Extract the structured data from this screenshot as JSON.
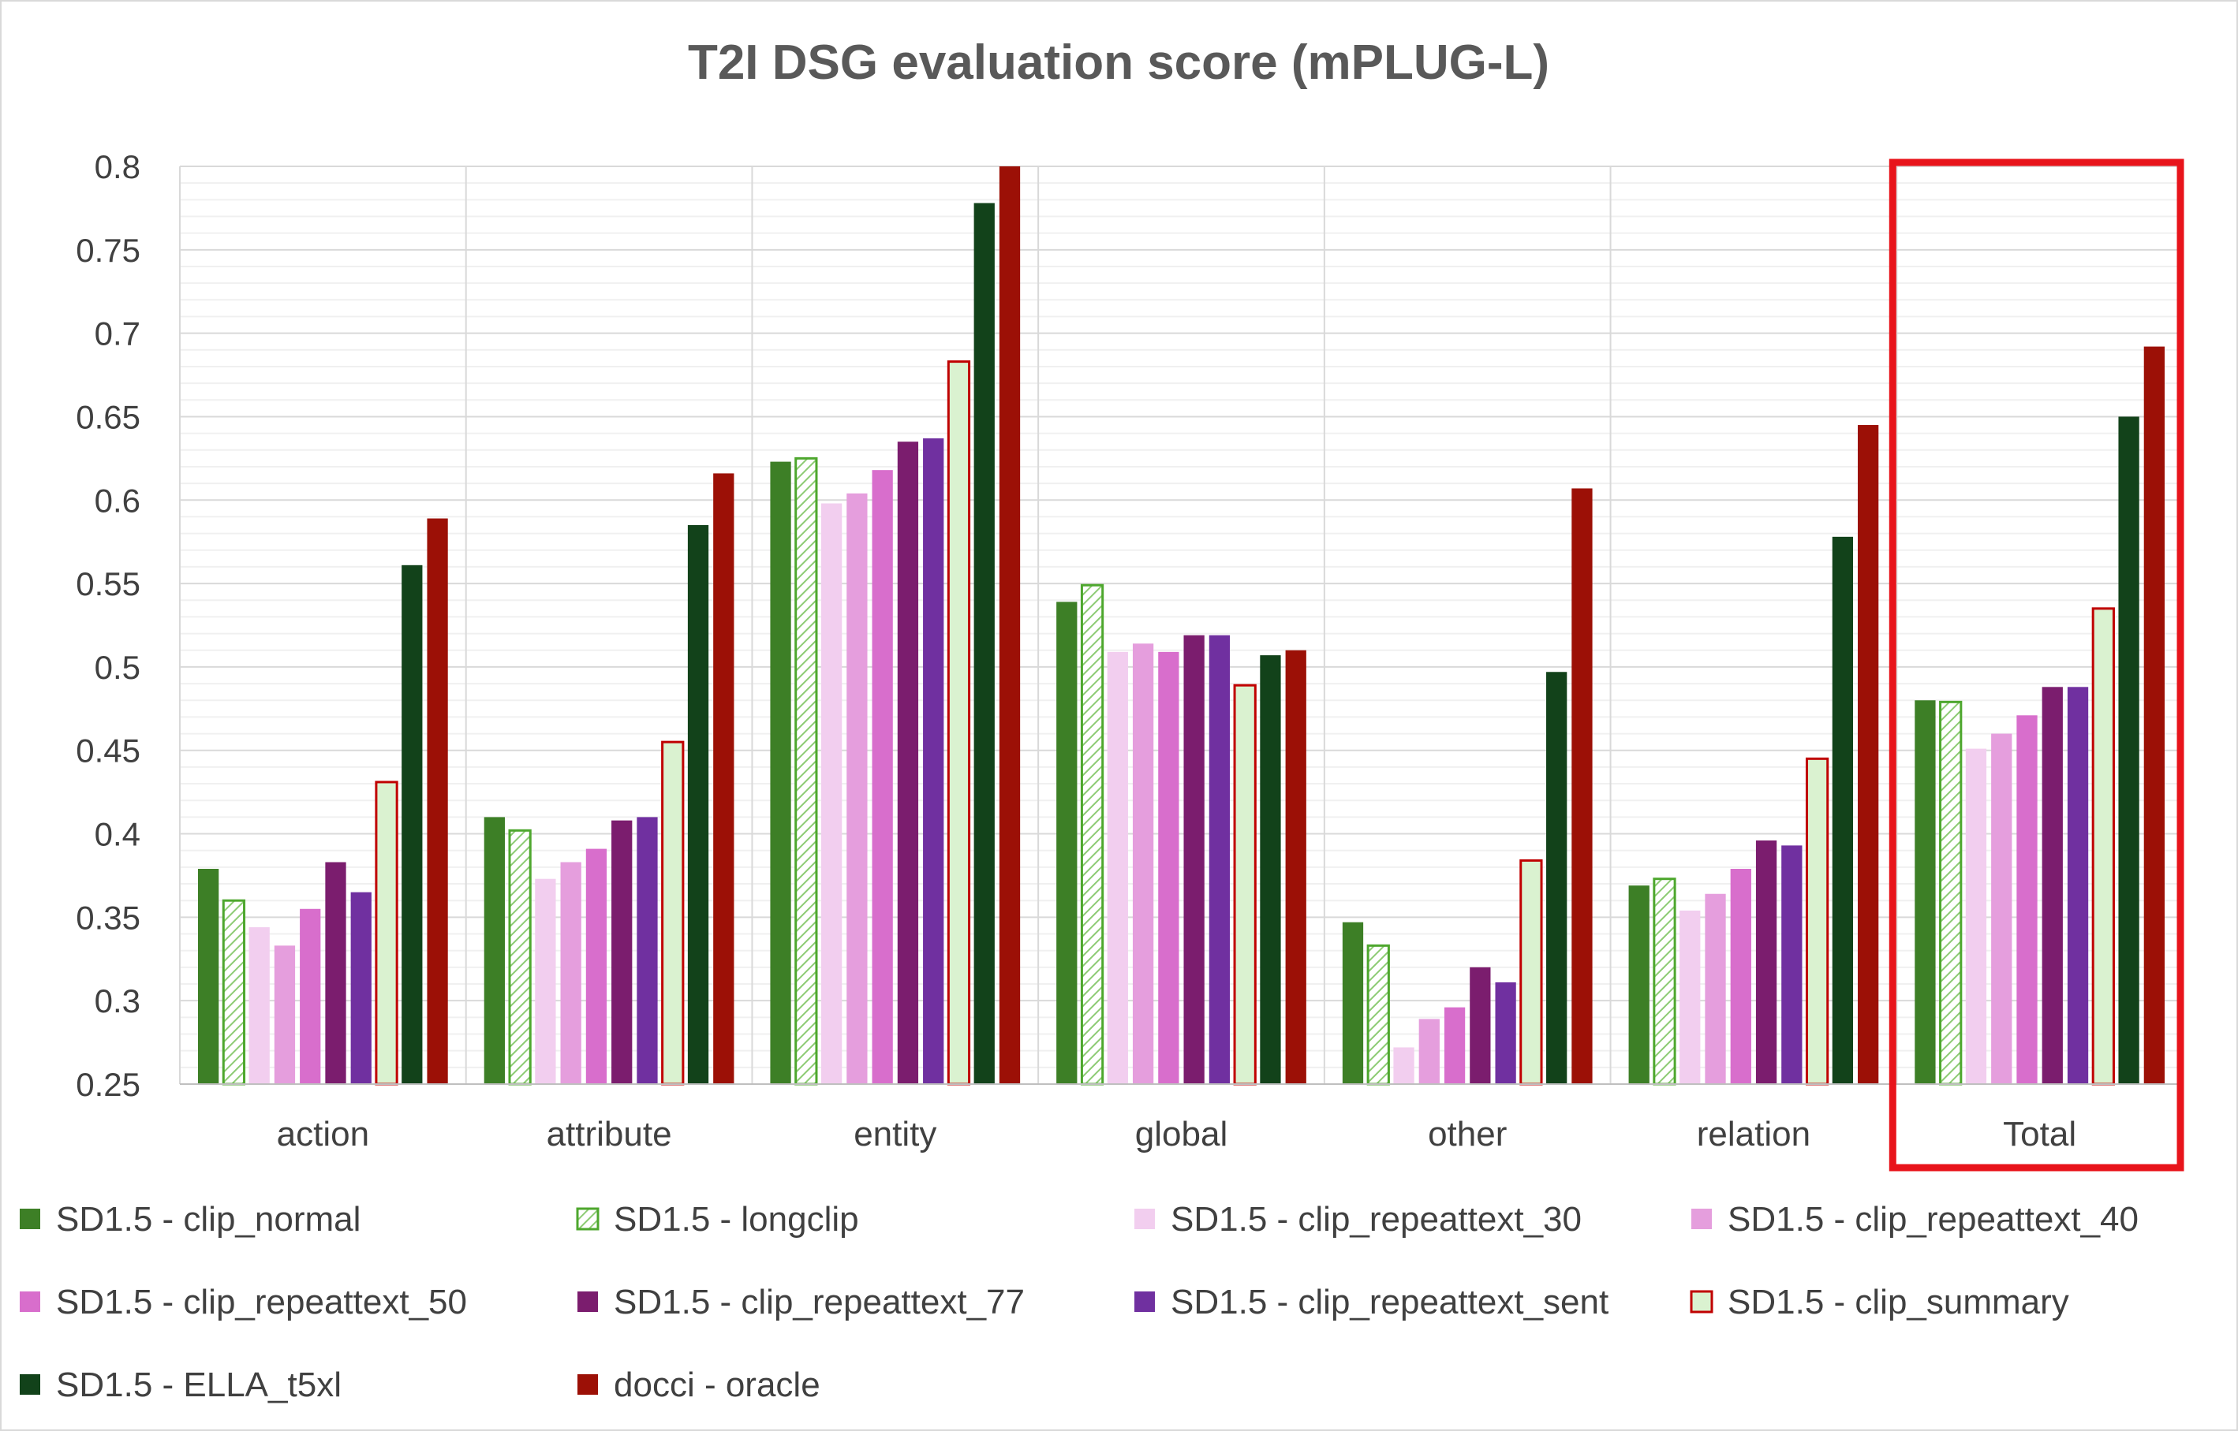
{
  "chart_data": {
    "type": "bar",
    "title": "T2I DSG evaluation score (mPLUG-L)",
    "xlabel": "",
    "ylabel": "",
    "ylim": [
      0.25,
      0.8
    ],
    "yticks": [
      "0.25",
      "0.3",
      "0.35",
      "0.4",
      "0.45",
      "0.5",
      "0.55",
      "0.6",
      "0.65",
      "0.7",
      "0.75",
      "0.8"
    ],
    "grid": true,
    "legend_position": "bottom",
    "highlight": {
      "category": "Total",
      "color": "#E8141B"
    },
    "categories": [
      "action",
      "attribute",
      "entity",
      "global",
      "other",
      "relation",
      "Total"
    ],
    "series": [
      {
        "name": "SD1.5 - clip_normal",
        "color": "#3D7F26",
        "style": "solid",
        "values": [
          0.379,
          0.41,
          0.623,
          0.539,
          0.347,
          0.369,
          0.48
        ]
      },
      {
        "name": "SD1.5 - longclip",
        "color": "#4EA72E",
        "style": "hatch",
        "values": [
          0.36,
          0.402,
          0.625,
          0.549,
          0.333,
          0.373,
          0.479
        ]
      },
      {
        "name": "SD1.5 - clip_repeattext_30",
        "color": "#F2CEEF",
        "style": "solid",
        "values": [
          0.344,
          0.373,
          0.598,
          0.509,
          0.272,
          0.354,
          0.451
        ]
      },
      {
        "name": "SD1.5 - clip_repeattext_40",
        "color": "#E59EDD",
        "style": "solid",
        "values": [
          0.333,
          0.383,
          0.604,
          0.514,
          0.289,
          0.364,
          0.46
        ]
      },
      {
        "name": "SD1.5 - clip_repeattext_50",
        "color": "#D86ECC",
        "style": "solid",
        "values": [
          0.355,
          0.391,
          0.618,
          0.509,
          0.296,
          0.379,
          0.471
        ]
      },
      {
        "name": "SD1.5 - clip_repeattext_77",
        "color": "#7B1D6E",
        "style": "solid",
        "values": [
          0.383,
          0.408,
          0.635,
          0.519,
          0.32,
          0.396,
          0.488
        ]
      },
      {
        "name": "SD1.5 - clip_repeattext_sent",
        "color": "#7030A0",
        "style": "solid",
        "values": [
          0.365,
          0.41,
          0.637,
          0.519,
          0.311,
          0.393,
          0.488
        ]
      },
      {
        "name": "SD1.5 - clip_summary",
        "color": "#DAF2D0",
        "style": "outline",
        "outline": "#C00000",
        "values": [
          0.431,
          0.455,
          0.683,
          0.489,
          0.384,
          0.445,
          0.535
        ]
      },
      {
        "name": "SD1.5 - ELLA_t5xl",
        "color": "#12421A",
        "style": "solid",
        "values": [
          0.561,
          0.585,
          0.778,
          0.507,
          0.497,
          0.578,
          0.65
        ]
      },
      {
        "name": "docci - oracle",
        "color": "#9C1006",
        "style": "solid",
        "values": [
          0.589,
          0.616,
          0.8,
          0.51,
          0.607,
          0.645,
          0.692
        ]
      }
    ]
  }
}
